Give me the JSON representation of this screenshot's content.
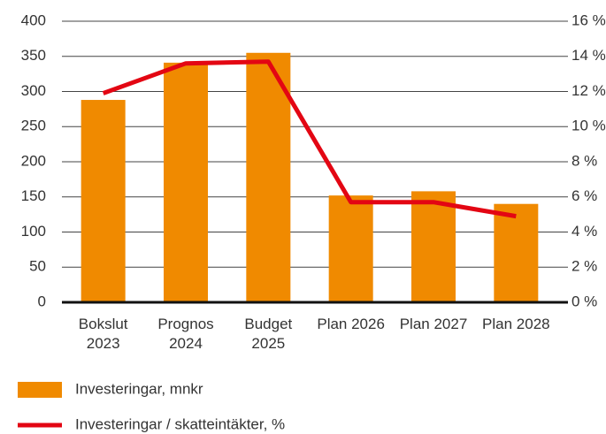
{
  "chart_data": {
    "type": "bar",
    "categories": [
      "Bokslut 2023",
      "Prognos 2024",
      "Budget 2025",
      "Plan 2026",
      "Plan 2027",
      "Plan 2028"
    ],
    "series": [
      {
        "name": "Investeringar, mnkr",
        "type": "bar",
        "color": "#f08a00",
        "values": [
          288,
          341,
          355,
          152,
          158,
          140
        ]
      },
      {
        "name": "Investeringar / skatteintäkter, %",
        "type": "line",
        "axis": "y2",
        "color": "#e30613",
        "values": [
          11.9,
          13.6,
          13.7,
          5.7,
          5.7,
          4.9
        ]
      }
    ],
    "ylim": [
      0,
      400
    ],
    "yticks": [
      0,
      50,
      100,
      150,
      200,
      250,
      300,
      350,
      400
    ],
    "y2lim": [
      0,
      16
    ],
    "y2ticks": [
      {
        "value": 0,
        "label": "0 %"
      },
      {
        "value": 2,
        "label": "2 %"
      },
      {
        "value": 4,
        "label": "4 %"
      },
      {
        "value": 6,
        "label": "6 %"
      },
      {
        "value": 8,
        "label": "8 %"
      },
      {
        "value": 10,
        "label": "10 %"
      },
      {
        "value": 12,
        "label": "12 %"
      },
      {
        "value": 14,
        "label": "14 %"
      },
      {
        "value": 16,
        "label": "16 %"
      }
    ],
    "grid": true,
    "legend": "bottom-left"
  }
}
